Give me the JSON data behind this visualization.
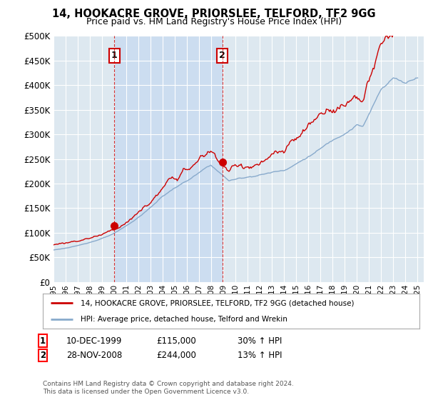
{
  "title_line1": "14, HOOKACRE GROVE, PRIORSLEE, TELFORD, TF2 9GG",
  "title_line2": "Price paid vs. HM Land Registry's House Price Index (HPI)",
  "background_color": "#ffffff",
  "plot_bg_color": "#dde8f0",
  "shade_color": "#ccddf0",
  "grid_color": "#ffffff",
  "house_color": "#cc0000",
  "hpi_color": "#88aacc",
  "sale1_date": "10-DEC-1999",
  "sale1_price": 115000,
  "sale1_label": "30% ↑ HPI",
  "sale2_date": "28-NOV-2008",
  "sale2_price": 244000,
  "sale2_label": "13% ↑ HPI",
  "legend_house": "14, HOOKACRE GROVE, PRIORSLEE, TELFORD, TF2 9GG (detached house)",
  "legend_hpi": "HPI: Average price, detached house, Telford and Wrekin",
  "footer": "Contains HM Land Registry data © Crown copyright and database right 2024.\nThis data is licensed under the Open Government Licence v3.0.",
  "ylim": [
    0,
    500000
  ],
  "yticks": [
    0,
    50000,
    100000,
    150000,
    200000,
    250000,
    300000,
    350000,
    400000,
    450000,
    500000
  ],
  "sale1_x": 2000.0,
  "sale2_x": 2008.92,
  "xmin": 1995.0,
  "xmax": 2025.5
}
